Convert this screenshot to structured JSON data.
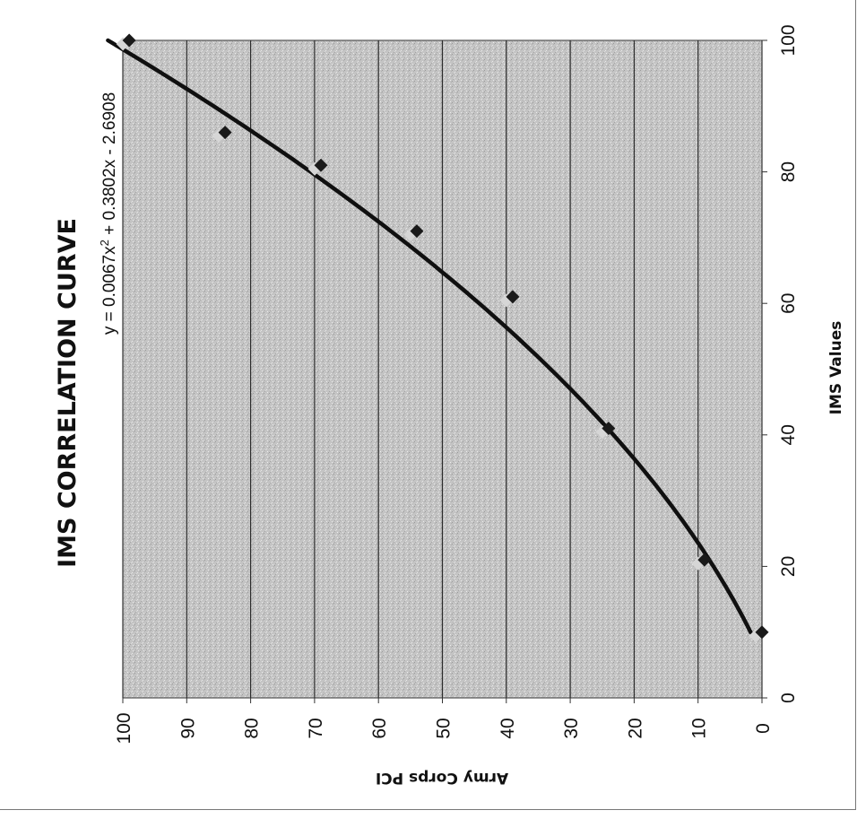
{
  "chart_data": {
    "type": "scatter",
    "title": "IMS CORRELATION CURVE",
    "xlabel": "IMS Values",
    "ylabel": "Army Corps PCI",
    "xlim": [
      0,
      100
    ],
    "ylim": [
      0,
      100
    ],
    "x_ticks": [
      "0",
      "20",
      "40",
      "60",
      "80",
      "100"
    ],
    "y_ticks": [
      "0",
      "10",
      "20",
      "30",
      "40",
      "50",
      "60",
      "70",
      "80",
      "90",
      "100"
    ],
    "grid": "horizontal major gridlines at every 10 PCI",
    "series": [
      {
        "points": [
          {
            "x": 10,
            "y": 0
          },
          {
            "x": 21,
            "y": 9
          },
          {
            "x": 41,
            "y": 24
          },
          {
            "x": 61,
            "y": 39
          },
          {
            "x": 71,
            "y": 54
          },
          {
            "x": 81,
            "y": 69
          },
          {
            "x": 86,
            "y": 84
          },
          {
            "x": 100,
            "y": 99
          }
        ]
      }
    ],
    "trendline": {
      "type": "polynomial",
      "a2": 0.0067,
      "a1": 0.3802,
      "a0": -2.6908,
      "x_range": [
        10,
        100
      ],
      "equation_label": {
        "prefix": "y = 0.0067x",
        "exponent": "2",
        "suffix": " + 0.3802x - 2.6908"
      }
    },
    "colors": {
      "plot_background": "#c8c8c8",
      "gridline": "#2a2a2a",
      "marker": "#1a1a1a",
      "marker_shadow": "#d6d6d6",
      "trendline": "#101010",
      "text": "#111111"
    }
  }
}
